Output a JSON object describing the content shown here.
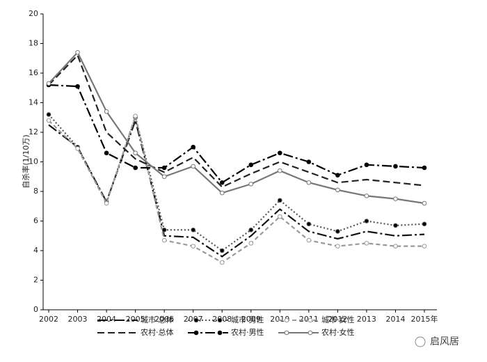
{
  "chart_data": {
    "type": "line",
    "y_label": "自杀率(1/10万)",
    "categories": [
      "2002",
      "2003",
      "2004",
      "2005",
      "2006",
      "2007",
      "2008",
      "2009",
      "2010",
      "2011",
      "2012",
      "2013",
      "2014",
      "2015年"
    ],
    "ylim": [
      0,
      20
    ],
    "yticks": [
      0,
      2,
      4,
      6,
      8,
      10,
      12,
      14,
      16,
      18,
      20
    ],
    "series": [
      {
        "name": "城市·总体",
        "color": "#111111",
        "dash": "14 4 3 4",
        "marker": "none",
        "values": [
          12.5,
          11.0,
          7.3,
          12.8,
          5.0,
          4.9,
          3.6,
          5.0,
          6.8,
          5.3,
          4.8,
          5.3,
          5.0,
          5.1
        ]
      },
      {
        "name": "城市·男性",
        "color": "#555555",
        "dash": "2 3",
        "marker": "filled",
        "values": [
          13.2,
          11.0,
          7.3,
          13.0,
          5.4,
          5.4,
          4.0,
          5.4,
          7.4,
          5.8,
          5.3,
          6.0,
          5.7,
          5.8
        ]
      },
      {
        "name": "城市·女性",
        "color": "#999999",
        "dash": "6 4",
        "marker": "hollow",
        "values": [
          12.8,
          10.9,
          7.2,
          13.1,
          4.7,
          4.3,
          3.2,
          4.5,
          6.3,
          4.7,
          4.3,
          4.5,
          4.3,
          4.3
        ]
      },
      {
        "name": "农村·总体",
        "color": "#222222",
        "dash": "10 5",
        "marker": "none",
        "values": [
          15.2,
          17.2,
          12.0,
          10.2,
          9.3,
          10.3,
          8.3,
          9.2,
          10.0,
          9.3,
          8.6,
          8.8,
          8.6,
          8.4
        ]
      },
      {
        "name": "农村·男性",
        "color": "#000000",
        "dash": "14 4 3 4",
        "marker": "filled",
        "values": [
          15.2,
          15.1,
          10.6,
          9.6,
          9.6,
          11.0,
          8.6,
          9.8,
          10.6,
          10.0,
          9.1,
          9.8,
          9.7,
          9.6
        ]
      },
      {
        "name": "农村·女性",
        "color": "#777777",
        "dash": "none",
        "marker": "hollow",
        "values": [
          15.3,
          17.4,
          13.4,
          10.6,
          9.0,
          9.7,
          7.9,
          8.5,
          9.4,
          8.6,
          8.1,
          7.7,
          7.5,
          7.2
        ]
      }
    ]
  },
  "watermark": "启风居"
}
